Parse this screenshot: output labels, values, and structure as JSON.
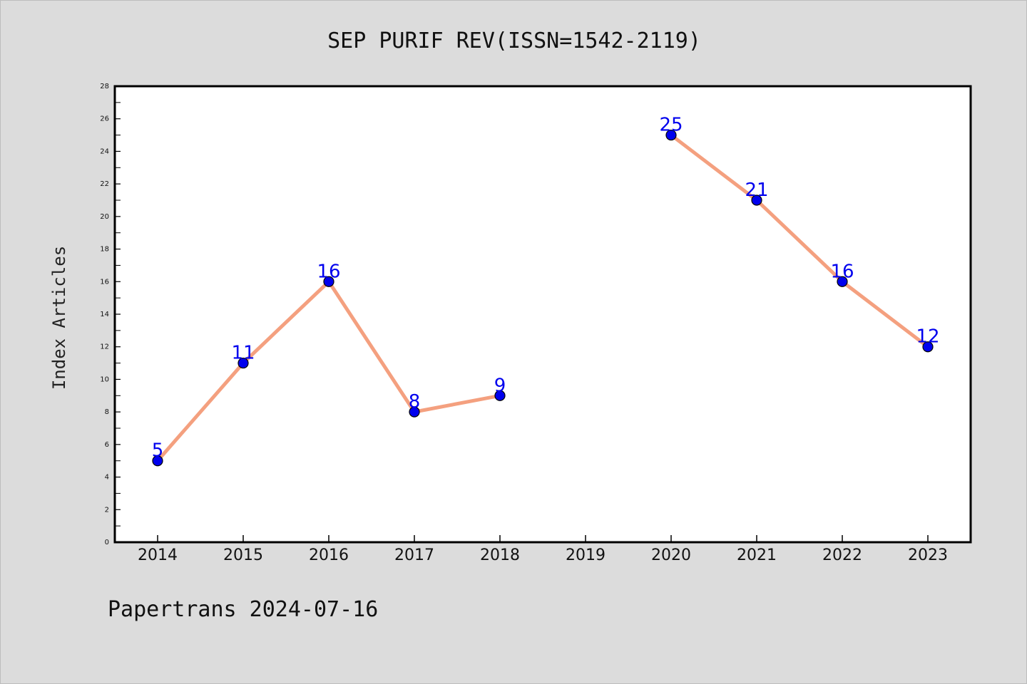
{
  "chart_data": {
    "type": "line",
    "title": "SEP PURIF REV(ISSN=1542-2119)",
    "xlabel": "",
    "ylabel": "Index Articles",
    "categories": [
      "2014",
      "2015",
      "2016",
      "2017",
      "2018",
      "2019",
      "2020",
      "2021",
      "2022",
      "2023"
    ],
    "series": [
      {
        "values": [
          5,
          11,
          16,
          8,
          9,
          null,
          25,
          21,
          16,
          12
        ]
      }
    ],
    "ylim": [
      0,
      28
    ],
    "yticks": [
      "0",
      "2",
      "4",
      "6",
      "8",
      "10",
      "12",
      "14",
      "16",
      "18",
      "20",
      "22",
      "24",
      "26",
      "28"
    ],
    "grid": false,
    "legend": "none",
    "colors": {
      "line": "#f4a07f",
      "marker": "#0000ee",
      "label": "#0000ee",
      "background": "#dcdcdc",
      "plot_background": "#ffffff"
    }
  },
  "footer": {
    "text": "Papertrans 2024-07-16"
  }
}
